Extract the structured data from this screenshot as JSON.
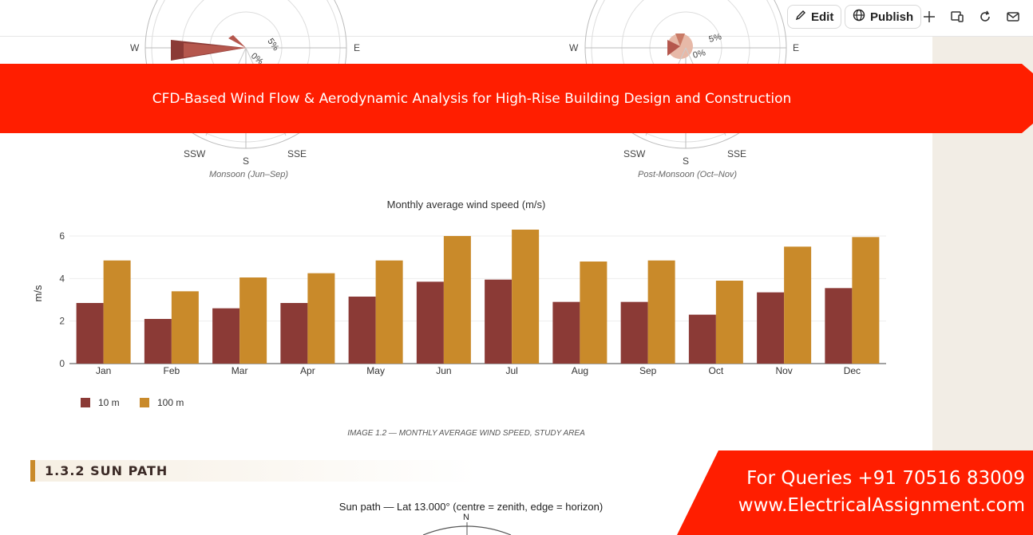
{
  "toolbar": {
    "edit_label": "Edit",
    "publish_label": "Publish",
    "icons": [
      "pencil-icon",
      "globe-icon",
      "crosshair-icon",
      "devices-icon",
      "refresh-icon",
      "mail-icon"
    ]
  },
  "wind_roses": [
    {
      "caption": "Monsoon (Jun–Sep)",
      "labels": {
        "w": "W",
        "e": "E",
        "ssw": "SSW",
        "s": "S",
        "sse": "SSE"
      },
      "ring_labels": [
        "5%",
        "0%"
      ]
    },
    {
      "caption": "Post-Monsoon (Oct–Nov)",
      "labels": {
        "w": "W",
        "e": "E",
        "ssw": "SSW",
        "s": "S",
        "sse": "SSE"
      },
      "ring_labels": [
        "5%",
        "0%"
      ]
    }
  ],
  "banner": {
    "text": "CFD-Based Wind Flow & Aerodynamic Analysis for High-Rise Building Design and Construction",
    "color": "#ff1e00"
  },
  "chart_data": {
    "type": "bar",
    "title": "Monthly average wind speed (m/s)",
    "xlabel": "",
    "ylabel": "m/s",
    "ylim": [
      0,
      6.6
    ],
    "yticks": [
      0,
      2,
      4,
      6
    ],
    "categories": [
      "Jan",
      "Feb",
      "Mar",
      "Apr",
      "May",
      "Jun",
      "Jul",
      "Aug",
      "Sep",
      "Oct",
      "Nov",
      "Dec"
    ],
    "series": [
      {
        "name": "10 m",
        "color": "#8b3a36",
        "values": [
          2.85,
          2.1,
          2.6,
          2.85,
          3.15,
          3.85,
          3.95,
          2.9,
          2.9,
          2.3,
          3.35,
          3.55
        ]
      },
      {
        "name": "100 m",
        "color": "#c98a2a",
        "values": [
          4.85,
          3.4,
          4.05,
          4.25,
          4.85,
          6.0,
          6.3,
          4.8,
          4.85,
          3.9,
          5.5,
          5.95
        ]
      }
    ],
    "grid": true,
    "legend": "bottom-left"
  },
  "image_caption": "IMAGE 1.2 — MONTHLY AVERAGE WIND SPEED, STUDY AREA",
  "section": {
    "title": "1.3.2 SUN PATH"
  },
  "sun_path": {
    "title": "Sun path — Lat 13.000° (centre = zenith, edge = horizon)",
    "north_label": "N"
  },
  "contact": {
    "line1": "For Queries +91 70516 83009",
    "line2": "www.ElectricalAssignment.com",
    "color": "#ff1e00"
  }
}
